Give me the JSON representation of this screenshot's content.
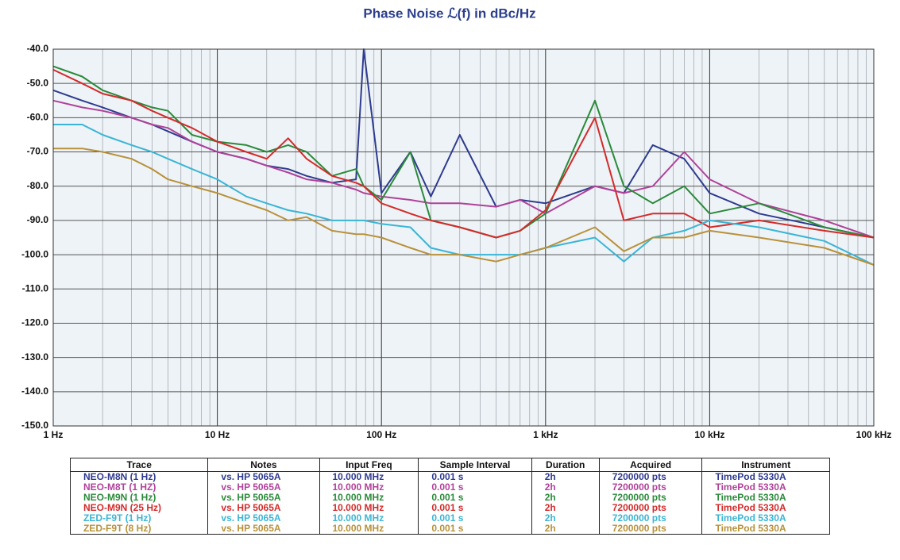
{
  "chart_data": {
    "type": "line",
    "title": "Phase Noise ℒ(f) in dBc/Hz",
    "xscale": "log",
    "grid": true,
    "xlim": [
      1,
      100000
    ],
    "xticks": [
      {
        "value": 1,
        "label": "1 Hz"
      },
      {
        "value": 10,
        "label": "10 Hz"
      },
      {
        "value": 100,
        "label": "100 Hz"
      },
      {
        "value": 1000,
        "label": "1 kHz"
      },
      {
        "value": 10000,
        "label": "10 kHz"
      },
      {
        "value": 100000,
        "label": "100 kHz"
      }
    ],
    "xminor_ticks": [
      2,
      3,
      4,
      5,
      6,
      7,
      8,
      9,
      20,
      30,
      40,
      50,
      60,
      70,
      80,
      90,
      200,
      300,
      400,
      500,
      600,
      700,
      800,
      900,
      2000,
      3000,
      4000,
      5000,
      6000,
      7000,
      8000,
      9000,
      20000,
      30000,
      40000,
      50000,
      60000,
      70000,
      80000,
      90000
    ],
    "ylim": [
      -150,
      -40
    ],
    "yticks": [
      {
        "value": -40,
        "label": "-40.0"
      },
      {
        "value": -50,
        "label": "-50.0"
      },
      {
        "value": -60,
        "label": "-60.0"
      },
      {
        "value": -70,
        "label": "-70.0"
      },
      {
        "value": -80,
        "label": "-80.0"
      },
      {
        "value": -90,
        "label": "-90.0"
      },
      {
        "value": -100,
        "label": "-100.0"
      },
      {
        "value": -110,
        "label": "-110.0"
      },
      {
        "value": -120,
        "label": "-120.0"
      },
      {
        "value": -130,
        "label": "-130.0"
      },
      {
        "value": -140,
        "label": "-140.0"
      },
      {
        "value": -150,
        "label": "-150.0"
      }
    ],
    "x": [
      1,
      1.5,
      2,
      3,
      4,
      5,
      7,
      10,
      15,
      20,
      27,
      35,
      50,
      70,
      78,
      100,
      150,
      200,
      300,
      500,
      700,
      1000,
      2000,
      3000,
      4500,
      7000,
      10000,
      20000,
      50000,
      100000
    ],
    "series": [
      {
        "name": "NEO-M8N (1 Hz)",
        "color": "#2e3b8f",
        "values": [
          -52,
          -55,
          -57,
          -60,
          -62,
          -64,
          -67,
          -70,
          -72,
          -74,
          -75,
          -77,
          -79,
          -78,
          -40,
          -82,
          -70,
          -83,
          -65,
          -86,
          -84,
          -85,
          -80,
          -82,
          -68,
          -72,
          -82,
          -88,
          -92,
          -95
        ]
      },
      {
        "name": "NEO-M8T (1 HZ)",
        "color": "#b0419a",
        "values": [
          -55,
          -57,
          -58,
          -60,
          -62,
          -63,
          -67,
          -70,
          -72,
          -74,
          -76,
          -78,
          -79,
          -81,
          -82,
          -83,
          -84,
          -85,
          -85,
          -86,
          -84,
          -88,
          -80,
          -82,
          -80,
          -70,
          -78,
          -85,
          -90,
          -95
        ]
      },
      {
        "name": "NEO-M9N (1 Hz)",
        "color": "#2a8a3a",
        "values": [
          -45,
          -48,
          -52,
          -55,
          -57,
          -58,
          -65,
          -67,
          -68,
          -70,
          -68,
          -70,
          -77,
          -75,
          -80,
          -84,
          -70,
          -90,
          -92,
          -95,
          -93,
          -88,
          -55,
          -80,
          -85,
          -80,
          -88,
          -85,
          -92,
          -95
        ]
      },
      {
        "name": "NEO-M9N (25 Hz)",
        "color": "#d42a2a",
        "values": [
          -46,
          -50,
          -53,
          -55,
          -58,
          -60,
          -63,
          -67,
          -70,
          -72,
          -66,
          -72,
          -77,
          -79,
          -80,
          -85,
          -88,
          -90,
          -92,
          -95,
          -93,
          -87,
          -60,
          -90,
          -88,
          -88,
          -92,
          -90,
          -93,
          -95
        ]
      },
      {
        "name": "ZED-F9T (1 Hz)",
        "color": "#3ab5d6",
        "values": [
          -62,
          -62,
          -65,
          -68,
          -70,
          -72,
          -75,
          -78,
          -83,
          -85,
          -87,
          -88,
          -90,
          -90,
          -90,
          -91,
          -92,
          -98,
          -100,
          -100,
          -100,
          -98,
          -95,
          -102,
          -95,
          -93,
          -90,
          -92,
          -96,
          -103
        ]
      },
      {
        "name": "ZED-F9T (8 Hz)",
        "color": "#b8913a",
        "values": [
          -69,
          -69,
          -70,
          -72,
          -75,
          -78,
          -80,
          -82,
          -85,
          -87,
          -90,
          -89,
          -93,
          -94,
          -94,
          -95,
          -98,
          -100,
          -100,
          -102,
          -100,
          -98,
          -92,
          -99,
          -95,
          -95,
          -93,
          -95,
          -98,
          -103
        ]
      }
    ]
  },
  "table": {
    "columns": [
      "Trace",
      "Notes",
      "Input Freq",
      "Sample Interval",
      "Duration",
      "Acquired",
      "Instrument"
    ],
    "rows": [
      [
        "NEO-M8N (1 Hz)",
        "vs. HP 5065A",
        "10.000 MHz",
        "0.001 s",
        "2h",
        "7200000 pts",
        "TimePod 5330A"
      ],
      [
        "NEO-M8T (1 HZ)",
        "vs. HP 5065A",
        "10.000 MHz",
        "0.001 s",
        "2h",
        "7200000 pts",
        "TimePod 5330A"
      ],
      [
        "NEO-M9N (1 Hz)",
        "vs. HP 5065A",
        "10.000 MHz",
        "0.001 s",
        "2h",
        "7200000 pts",
        "TimePod 5330A"
      ],
      [
        "NEO-M9N (25 Hz)",
        "vs. HP 5065A",
        "10.000 MHz",
        "0.001 s",
        "2h",
        "7200000 pts",
        "TimePod 5330A"
      ],
      [
        "ZED-F9T (1 Hz)",
        "vs. HP 5065A",
        "10.000 MHz",
        "0.001 s",
        "2h",
        "7200000 pts",
        "TimePod 5330A"
      ],
      [
        "ZED-F9T (8 Hz)",
        "vs. HP 5065A",
        "10.000 MHz",
        "0.001 s",
        "2h",
        "7200000 pts",
        "TimePod 5330A"
      ]
    ]
  }
}
